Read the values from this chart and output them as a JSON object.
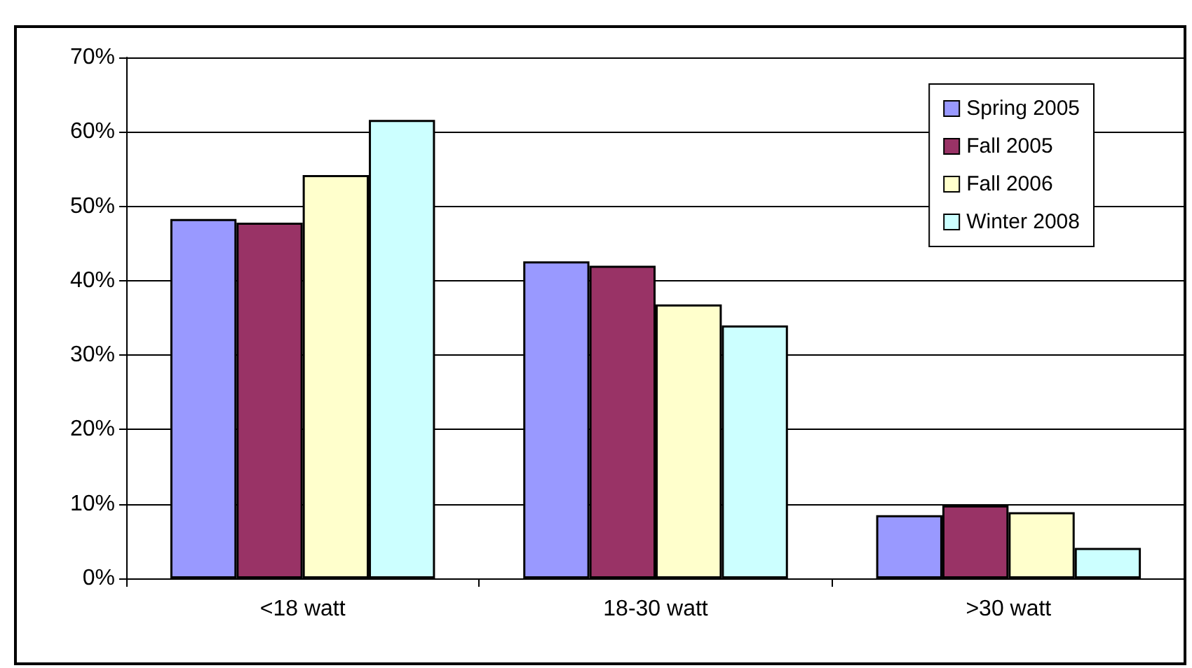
{
  "chart_data": {
    "type": "bar",
    "categories": [
      "<18 watt",
      "18-30 watt",
      ">30 watt"
    ],
    "series": [
      {
        "name": "Spring 2005",
        "color": "#9999ff",
        "values": [
          48.3,
          42.6,
          8.5
        ]
      },
      {
        "name": "Fall 2005",
        "color": "#993366",
        "values": [
          47.8,
          42.0,
          9.8
        ]
      },
      {
        "name": "Fall 2006",
        "color": "#ffffcc",
        "values": [
          54.2,
          36.8,
          8.9
        ]
      },
      {
        "name": "Winter 2008",
        "color": "#ccffff",
        "values": [
          61.6,
          34.0,
          4.1
        ]
      }
    ],
    "ylim": [
      0,
      70
    ],
    "yticks": [
      {
        "value": 0,
        "label": "0%"
      },
      {
        "value": 10,
        "label": "10%"
      },
      {
        "value": 20,
        "label": "20%"
      },
      {
        "value": 30,
        "label": "30%"
      },
      {
        "value": 40,
        "label": "40%"
      },
      {
        "value": 50,
        "label": "50%"
      },
      {
        "value": 60,
        "label": "60%"
      },
      {
        "value": 70,
        "label": "70%"
      }
    ],
    "grid": "y",
    "legend": "top right"
  }
}
